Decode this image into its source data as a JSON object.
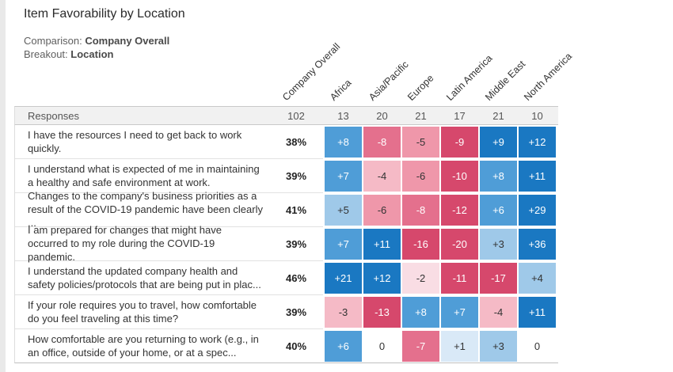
{
  "title": "Item Favorability by Location",
  "meta": {
    "comparison_label": "Comparison:",
    "comparison_value": "Company Overall",
    "breakout_label": "Breakout:",
    "breakout_value": "Location"
  },
  "responses_label": "Responses",
  "palette": {
    "b3": {
      "bg": "#1a78c2",
      "fg": "#ffffff"
    },
    "b2": {
      "bg": "#4f9dd7",
      "fg": "#ffffff"
    },
    "b1": {
      "bg": "#9fc9e9",
      "fg": "#333333"
    },
    "b0": {
      "bg": "#d9e9f7",
      "fg": "#333333"
    },
    "z": {
      "bg": "#ffffff",
      "fg": "#333333"
    },
    "r0": {
      "bg": "#f9dde4",
      "fg": "#333333"
    },
    "r1": {
      "bg": "#f5bac6",
      "fg": "#333333"
    },
    "r2": {
      "bg": "#ef97aa",
      "fg": "#333333"
    },
    "r25": {
      "bg": "#e4708d",
      "fg": "#ffffff"
    },
    "r3": {
      "bg": "#d6486c",
      "fg": "#ffffff"
    }
  },
  "chart_data": {
    "type": "heatmap",
    "title": "Item Favorability by Location",
    "comparison": "Company Overall",
    "breakout": "Location",
    "columns": [
      "Company Overall",
      "Africa",
      "Asia/Pacific",
      "Europe",
      "Latin America",
      "Middle East",
      "North America"
    ],
    "counts": [
      "102",
      "13",
      "20",
      "21",
      "17",
      "21",
      "10"
    ],
    "rows": [
      {
        "item": "I have the resources I need to get back to work quickly.",
        "base": "38%",
        "values": [
          "+8",
          "-8",
          "-5",
          "-9",
          "+9",
          "+12"
        ],
        "levels": [
          "b2",
          "r25",
          "r2",
          "r3",
          "b3",
          "b3"
        ]
      },
      {
        "item": "I understand what is expected of me in maintaining a healthy and safe environment at work.",
        "base": "39%",
        "values": [
          "+7",
          "-4",
          "-6",
          "-10",
          "+8",
          "+11"
        ],
        "levels": [
          "b2",
          "r1",
          "r2",
          "r3",
          "b2",
          "b3"
        ]
      },
      {
        "item": "Changes to the company's business priorities as a result of the COVID-19 pandemic have been clearly ...",
        "base": "41%",
        "values": [
          "+5",
          "-6",
          "-8",
          "-12",
          "+6",
          "+29"
        ],
        "levels": [
          "b1",
          "r2",
          "r25",
          "r3",
          "b2",
          "b3"
        ]
      },
      {
        "item": "I am prepared for changes that might have occurred to my role during the COVID-19 pandemic.",
        "base": "39%",
        "values": [
          "+7",
          "+11",
          "-16",
          "-20",
          "+3",
          "+36"
        ],
        "levels": [
          "b2",
          "b3",
          "r3",
          "r3",
          "b1",
          "b3"
        ]
      },
      {
        "item": "I understand the updated company health and safety policies/protocols that are being put in plac...",
        "base": "46%",
        "values": [
          "+21",
          "+12",
          "-2",
          "-11",
          "-17",
          "+4"
        ],
        "levels": [
          "b3",
          "b3",
          "r0",
          "r3",
          "r3",
          "b1"
        ]
      },
      {
        "item": "If your role requires you to travel, how comfortable do you feel traveling at this time?",
        "base": "39%",
        "values": [
          "-3",
          "-13",
          "+8",
          "+7",
          "-4",
          "+11"
        ],
        "levels": [
          "r1",
          "r3",
          "b2",
          "b2",
          "r1",
          "b3"
        ]
      },
      {
        "item": "How comfortable are you returning to work (e.g., in an office, outside of your home, or at a spec...",
        "base": "40%",
        "values": [
          "+6",
          "0",
          "-7",
          "+1",
          "+3",
          "0"
        ],
        "levels": [
          "b2",
          "z",
          "r25",
          "b0",
          "b1",
          "z"
        ]
      }
    ]
  }
}
